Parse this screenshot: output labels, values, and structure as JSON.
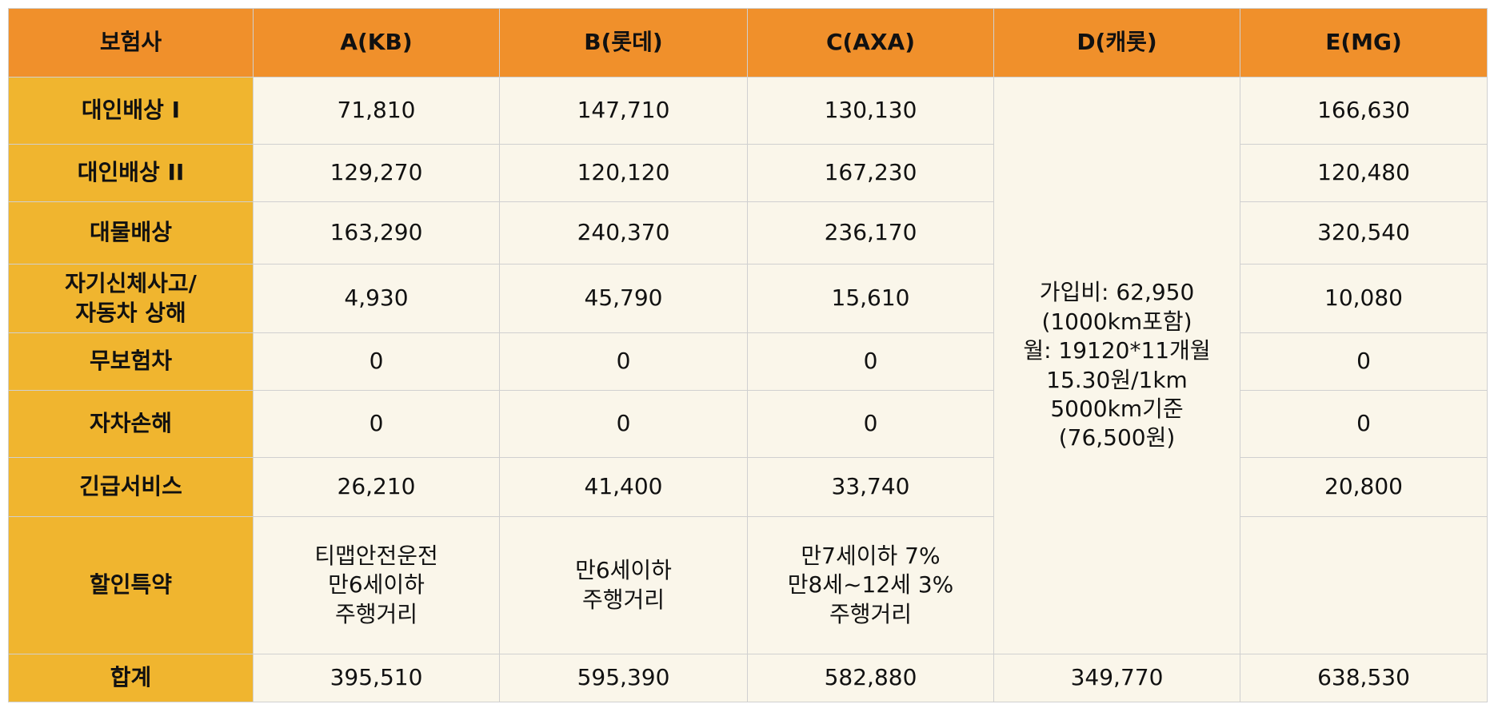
{
  "table": {
    "header": [
      "보험사",
      "A(KB)",
      "B(롯데)",
      "C(AXA)",
      "D(캐롯)",
      "E(MG)"
    ],
    "rows": [
      {
        "label": "대인배상 I",
        "cells": [
          "71,810",
          "147,710",
          "130,130",
          "166,630"
        ]
      },
      {
        "label": "대인배상 II",
        "cells": [
          "129,270",
          "120,120",
          "167,230",
          "120,480"
        ]
      },
      {
        "label": "대물배상",
        "cells": [
          "163,290",
          "240,370",
          "236,170",
          "320,540"
        ]
      },
      {
        "label": [
          "자기신체사고/",
          "자동차 상해"
        ],
        "cells": [
          "4,930",
          "45,790",
          "15,610",
          "10,080"
        ]
      },
      {
        "label": "무보험차",
        "cells": [
          "0",
          "0",
          "0",
          "0"
        ]
      },
      {
        "label": "자차손해",
        "cells": [
          "0",
          "0",
          "0",
          "0"
        ]
      },
      {
        "label": "긴급서비스",
        "cells": [
          "26,210",
          "41,400",
          "33,740",
          "20,800"
        ]
      },
      {
        "label": "할인특약",
        "cells": [
          [
            "티맵안전운전",
            "만6세이하",
            "주행거리"
          ],
          [
            "만6세이하",
            "주행거리"
          ],
          [
            "만7세이하 7%",
            "만8세~12세 3%",
            "주행거리"
          ]
        ]
      }
    ],
    "d_merged": [
      "가입비: 62,950",
      "(1000km포함)",
      "월: 19120*11개월",
      "15.30원/1km",
      "5000km기준",
      "(76,500원)"
    ],
    "total": {
      "label": "합계",
      "cells": [
        "395,510",
        "595,390",
        "582,880",
        "349,770",
        "638,530"
      ]
    }
  }
}
